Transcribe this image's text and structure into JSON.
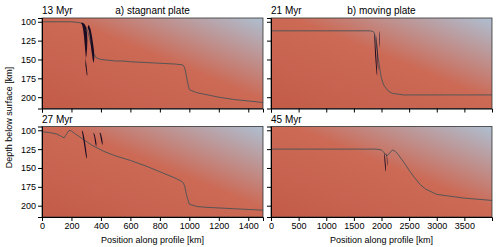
{
  "chart_data": [
    {
      "type": "line",
      "title": "a) stagnant plate",
      "subtitle": "13 Myr",
      "ylabel": "Depth below surface [km]",
      "xlim": [
        0,
        1500
      ],
      "ylim": [
        215,
        95
      ],
      "xticks": [
        0,
        200,
        400,
        600,
        800,
        1000,
        1200,
        1400
      ],
      "yticks": [
        100,
        125,
        150,
        175,
        200
      ],
      "tick_labels": "y",
      "series": [
        {
          "type": "line",
          "color": "#555555",
          "x": [
            0,
            100,
            200,
            250,
            270,
            290,
            300,
            310,
            320,
            330,
            340,
            350,
            370,
            400,
            450,
            500,
            550,
            600,
            700,
            800,
            900,
            950,
            960,
            970,
            980,
            990,
            1000,
            1050,
            1100,
            1150,
            1200,
            1300,
            1400,
            1500
          ],
          "values": [
            100,
            100,
            100,
            101,
            102,
            105,
            108,
            112,
            120,
            128,
            136,
            142,
            148,
            150,
            151,
            152,
            152,
            153,
            154,
            155,
            156,
            157,
            158,
            162,
            172,
            182,
            190,
            194,
            196,
            198,
            200,
            203,
            205,
            207
          ]
        },
        {
          "type": "fill",
          "color": "#0d0520",
          "x": [
            265,
            272,
            278,
            284,
            290,
            294,
            298,
            302,
            306,
            308,
            306,
            300,
            292,
            282,
            272,
            265
          ],
          "values": [
            102,
            104,
            109,
            118,
            130,
            140,
            148,
            145,
            135,
            125,
            115,
            108,
            104,
            102,
            101,
            102
          ]
        },
        {
          "type": "fill",
          "color": "#0d0520",
          "x": [
            310,
            318,
            325,
            332,
            338,
            344,
            350,
            355,
            353,
            346,
            338,
            330,
            322,
            315,
            310
          ],
          "values": [
            108,
            112,
            120,
            132,
            142,
            150,
            155,
            148,
            138,
            128,
            118,
            110,
            106,
            104,
            108
          ]
        },
        {
          "type": "fill",
          "color": "#0d0520",
          "x": [
            295,
            300,
            305,
            308,
            305,
            300,
            295
          ],
          "values": [
            148,
            155,
            163,
            170,
            172,
            165,
            158
          ]
        }
      ]
    },
    {
      "type": "line",
      "title": "b) moving plate",
      "subtitle": "21 Myr",
      "xlim": [
        0,
        4000
      ],
      "ylim": [
        215,
        95
      ],
      "xticks": [
        0,
        500,
        1000,
        1500,
        2000,
        2500,
        3000,
        3500
      ],
      "yticks": [
        100,
        125,
        150,
        175,
        200
      ],
      "tick_labels": false,
      "series": [
        {
          "type": "line",
          "color": "#555555",
          "x": [
            0,
            500,
            1000,
            1500,
            1700,
            1800,
            1850,
            1870,
            1880,
            1890,
            1900,
            1920,
            1940,
            1960,
            1980,
            2000,
            2020,
            2050,
            2100,
            2150,
            2200,
            2300,
            2400,
            2500,
            2700,
            3000,
            3500,
            4000
          ],
          "values": [
            112,
            112,
            112,
            112,
            112,
            112,
            113,
            115,
            118,
            122,
            127,
            138,
            148,
            158,
            168,
            175,
            180,
            185,
            190,
            193,
            195,
            196,
            197,
            197,
            197,
            197,
            197,
            197
          ]
        },
        {
          "type": "fill",
          "color": "#0d0520",
          "x": [
            1870,
            1878,
            1886,
            1895,
            1905,
            1912,
            1918,
            1922,
            1920,
            1910,
            1898,
            1885,
            1875,
            1870
          ],
          "values": [
            115,
            118,
            125,
            135,
            145,
            155,
            162,
            168,
            172,
            168,
            158,
            145,
            130,
            120
          ]
        },
        {
          "type": "fill",
          "color": "#0d0520",
          "x": [
            1910,
            1918,
            1925,
            1932,
            1938,
            1942,
            1940,
            1932,
            1922,
            1912,
            1908
          ],
          "values": [
            118,
            125,
            135,
            145,
            155,
            160,
            165,
            158,
            145,
            130,
            122
          ]
        },
        {
          "type": "fill",
          "color": "#0d0520",
          "x": [
            1955,
            1962,
            1968,
            1972,
            1970,
            1962,
            1955
          ],
          "values": [
            112,
            115,
            122,
            130,
            135,
            128,
            118
          ]
        }
      ]
    },
    {
      "type": "line",
      "subtitle": "27 Myr",
      "xlabel": "Position along profile [km]",
      "xlim": [
        0,
        1500
      ],
      "ylim": [
        215,
        95
      ],
      "xticks": [
        0,
        200,
        400,
        600,
        800,
        1000,
        1200,
        1400
      ],
      "yticks": [
        100,
        125,
        150,
        175,
        200
      ],
      "series": [
        {
          "type": "line",
          "color": "#555555",
          "x": [
            0,
            50,
            100,
            130,
            150,
            160,
            170,
            180,
            190,
            200,
            220,
            250,
            280,
            310,
            340,
            380,
            420,
            500,
            600,
            700,
            800,
            900,
            950,
            960,
            970,
            980,
            990,
            1000,
            1050,
            1100,
            1200,
            1300,
            1400,
            1500
          ],
          "values": [
            102,
            103,
            105,
            108,
            110,
            107,
            104,
            101,
            100,
            101,
            104,
            108,
            112,
            116,
            120,
            124,
            128,
            134,
            140,
            147,
            155,
            163,
            168,
            170,
            175,
            185,
            192,
            198,
            201,
            202,
            203,
            204,
            205,
            206
          ]
        },
        {
          "type": "fill",
          "color": "#0d0520",
          "x": [
            270,
            278,
            285,
            292,
            298,
            302,
            305,
            302,
            296,
            288,
            280,
            274,
            270
          ],
          "values": [
            100,
            102,
            108,
            116,
            124,
            130,
            135,
            138,
            132,
            122,
            112,
            105,
            100
          ]
        },
        {
          "type": "fill",
          "color": "#0d0520",
          "x": [
            350,
            358,
            365,
            370,
            368,
            362,
            356,
            350
          ],
          "values": [
            103,
            106,
            112,
            118,
            122,
            118,
            110,
            105
          ]
        },
        {
          "type": "fill",
          "color": "#0d0520",
          "x": [
            395,
            402,
            408,
            412,
            410,
            404,
            397,
            392
          ],
          "values": [
            103,
            106,
            111,
            117,
            120,
            116,
            109,
            104
          ]
        }
      ]
    },
    {
      "type": "line",
      "subtitle": "45 Myr",
      "xlabel": "Position along profile [km]",
      "xlim": [
        0,
        4000
      ],
      "ylim": [
        215,
        95
      ],
      "xticks": [
        0,
        500,
        1000,
        1500,
        2000,
        2500,
        3000,
        3500
      ],
      "yticks": [
        100,
        125,
        150,
        175,
        200
      ],
      "tick_labels": "x",
      "series": [
        {
          "type": "line",
          "color": "#555555",
          "x": [
            0,
            200,
            400,
            600,
            800,
            1000,
            1200,
            1400,
            1600,
            1800,
            1900,
            2000,
            2050,
            2100,
            2150,
            2200,
            2250,
            2300,
            2400,
            2500,
            2600,
            2700,
            2800,
            3000,
            3500,
            4000
          ],
          "values": [
            125,
            125,
            125,
            125,
            125,
            125,
            125,
            125,
            125,
            125,
            125,
            126,
            130,
            134,
            130,
            126,
            128,
            132,
            142,
            153,
            163,
            172,
            178,
            185,
            190,
            193
          ]
        },
        {
          "type": "fill",
          "color": "#0d0520",
          "x": [
            2050,
            2060,
            2068,
            2075,
            2080,
            2078,
            2070,
            2060,
            2052,
            2048
          ],
          "values": [
            130,
            133,
            138,
            144,
            150,
            155,
            153,
            146,
            138,
            132
          ]
        },
        {
          "type": "fill",
          "color": "#0d0520",
          "x": [
            2090,
            2098,
            2105,
            2110,
            2108,
            2100,
            2092
          ],
          "values": [
            130,
            133,
            138,
            144,
            148,
            142,
            133
          ]
        }
      ]
    }
  ]
}
